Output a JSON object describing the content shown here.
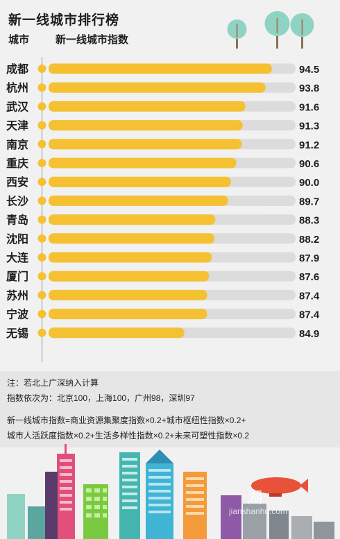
{
  "header": {
    "title": "新一线城市排行榜",
    "city_col": "城市",
    "index_col": "新一线城市指数"
  },
  "chart_data": {
    "type": "bar",
    "orientation": "horizontal",
    "title": "新一线城市排行榜",
    "xlabel": "新一线城市指数",
    "ylabel": "城市",
    "xlim": [
      0,
      100
    ],
    "grid": false,
    "categories": [
      "成都",
      "杭州",
      "武汉",
      "天津",
      "南京",
      "重庆",
      "西安",
      "长沙",
      "青岛",
      "沈阳",
      "大连",
      "厦门",
      "苏州",
      "宁波",
      "无锡"
    ],
    "values": [
      94.5,
      93.8,
      91.6,
      91.3,
      91.2,
      90.6,
      90.0,
      89.7,
      88.3,
      88.2,
      87.9,
      87.6,
      87.4,
      87.4,
      84.9
    ],
    "value_labels": [
      "94.5",
      "93.8",
      "91.6",
      "91.3",
      "91.2",
      "90.6",
      "90.0",
      "89.7",
      "88.3",
      "88.2",
      "87.9",
      "87.6",
      "87.4",
      "87.4",
      "84.9"
    ]
  },
  "notes": {
    "line1": "注：若北上广深纳入计算",
    "line2": "指数依次为：北京100，上海100，广州98，深圳97",
    "line3": "新一线城市指数=商业资源集聚度指数×0.2+城市枢纽性指数×0.2+",
    "line4": "城市人活跃度指数×0.2+生活多样性指数×0.2+未来可塑性指数×0.2"
  },
  "watermark": {
    "text": "湖",
    "url": "jianshanhu.com"
  },
  "colors": {
    "bar": "#f5c132",
    "track": "#dcdcdc",
    "dot": "#f5c132",
    "background": "#f1f1f1",
    "notes_background": "#e6e6e6"
  },
  "icons": [
    "tree-icon",
    "balloon-icon",
    "skyline-illustration"
  ]
}
